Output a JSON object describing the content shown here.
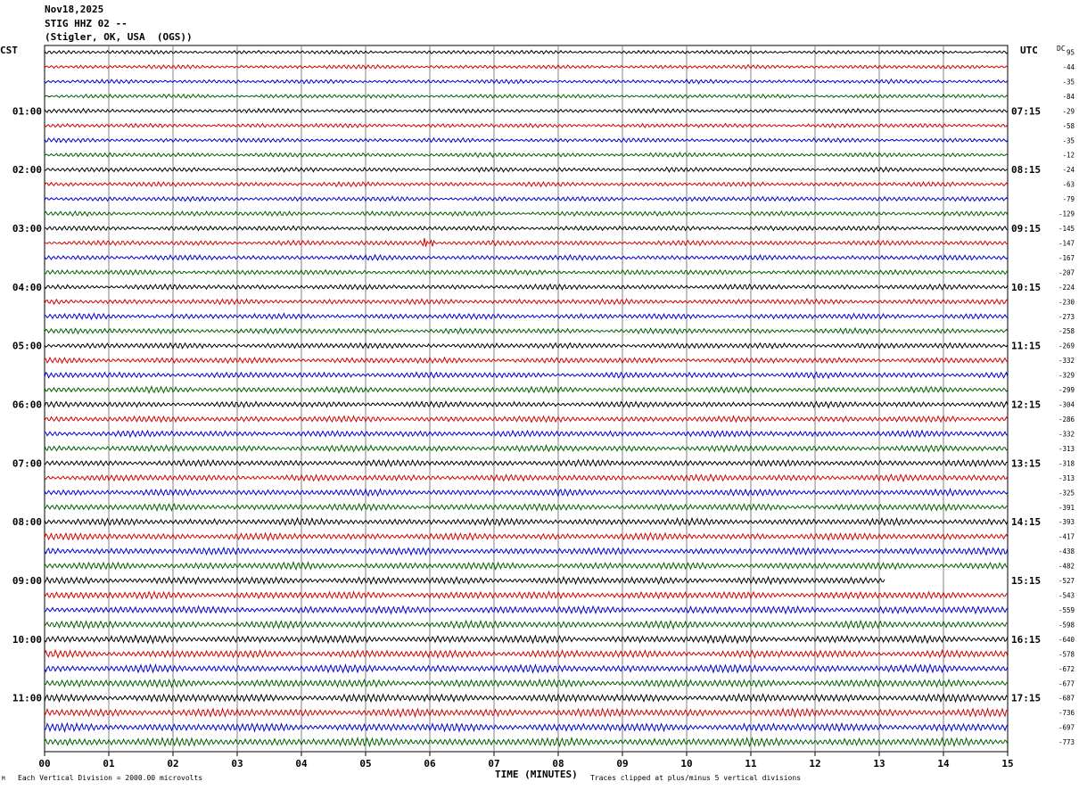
{
  "header": {
    "date": "Nov18,2025",
    "station": "STIG HHZ 02 --",
    "location": "(Stigler, OK, USA  (OGS))"
  },
  "axes": {
    "left_tz": "CST",
    "right_tz": "UTC",
    "dc_label": "DC",
    "xlabel": "TIME (MINUTES)"
  },
  "footer": {
    "scale_note": "Each Vertical Division = 2000.00 microvolts",
    "clip_note": "Traces clipped at plus/minus 5 vertical divisions",
    "corner_mark": "M"
  },
  "colors": {
    "trace_cycle": [
      "#000000",
      "#d40000",
      "#0000d4",
      "#006000"
    ],
    "grid": "#808080"
  },
  "chart_data": {
    "type": "line",
    "description_kind": "helicorder",
    "x_tick_labels": [
      "00",
      "01",
      "02",
      "03",
      "04",
      "05",
      "06",
      "07",
      "08",
      "09",
      "10",
      "11",
      "12",
      "13",
      "14",
      "15"
    ],
    "xlim": [
      0,
      15
    ],
    "trace_count": 48,
    "left_time_labels": [
      "01:00",
      "02:00",
      "03:00",
      "04:00",
      "05:00",
      "06:00",
      "07:00",
      "08:00",
      "09:00",
      "10:00",
      "11:00"
    ],
    "right_time_labels": [
      "07:15",
      "08:15",
      "09:15",
      "10:15",
      "11:15",
      "12:15",
      "13:15",
      "14:15",
      "15:15",
      "16:15",
      "17:15"
    ],
    "hour_label_first_trace": 4,
    "traces_per_hour": 4,
    "dc_offsets": [
      95,
      -44,
      -35,
      -84,
      -29,
      -58,
      -35,
      -12,
      -24,
      -63,
      -79,
      -129,
      -145,
      -147,
      -167,
      -207,
      -224,
      -230,
      -273,
      -258,
      -269,
      -332,
      -329,
      -299,
      -304,
      -286,
      -332,
      -313,
      -318,
      -313,
      -325,
      -391,
      -393,
      -417,
      -438,
      -482,
      -527,
      -543,
      -559,
      -598,
      -640,
      -578,
      -672,
      -677,
      -687,
      -736,
      -697,
      -773
    ],
    "events": [
      {
        "trace": 13,
        "minute": 5.95,
        "note": "burst"
      }
    ],
    "data_end": {
      "trace": 36,
      "minute": 13.1
    }
  }
}
